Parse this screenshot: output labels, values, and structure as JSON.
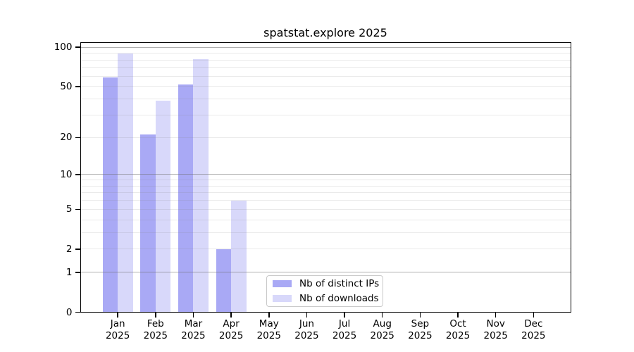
{
  "chart_data": {
    "type": "bar",
    "title": "spatstat.explore 2025",
    "xlabel": "",
    "ylabel": "",
    "x_tick_months": [
      "Jan",
      "Feb",
      "Mar",
      "Apr",
      "May",
      "Jun",
      "Jul",
      "Aug",
      "Sep",
      "Oct",
      "Nov",
      "Dec"
    ],
    "x_tick_year": "2025",
    "categories": [
      "Jan 2025",
      "Feb 2025",
      "Mar 2025",
      "Apr 2025",
      "May 2025",
      "Jun 2025",
      "Jul 2025",
      "Aug 2025",
      "Sep 2025",
      "Oct 2025",
      "Nov 2025",
      "Dec 2025"
    ],
    "series": [
      {
        "name": "Nb of distinct IPs",
        "color": "#a9a9f5",
        "values": [
          59,
          21,
          52,
          2,
          0,
          0,
          0,
          0,
          0,
          0,
          0,
          0
        ]
      },
      {
        "name": "Nb of downloads",
        "color": "#d8d8fa",
        "values": [
          90,
          39,
          81,
          6,
          0,
          0,
          0,
          0,
          0,
          0,
          0,
          0
        ]
      }
    ],
    "yscale": "log1p",
    "ylim": [
      0,
      110
    ],
    "yticks": [
      0,
      1,
      2,
      5,
      10,
      20,
      50,
      100
    ],
    "gridlines": {
      "orientation": "horizontal",
      "major": [
        1,
        10,
        100
      ],
      "minor": [
        2,
        3,
        4,
        5,
        6,
        7,
        8,
        9,
        20,
        30,
        40,
        50,
        60,
        70,
        80,
        90
      ],
      "major_color": "#b0b0b0",
      "minor_color": "#ebebeb"
    },
    "legend": {
      "position": "inside lower-center",
      "border_color": "#c9c9c9"
    },
    "axis_color": "#000000",
    "background": "#ffffff"
  }
}
